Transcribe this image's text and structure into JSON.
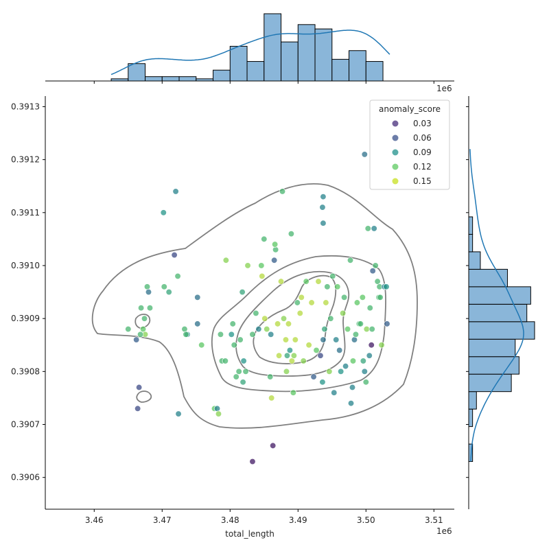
{
  "chart_data": {
    "type": "scatter",
    "subtype": "jointplot",
    "xlabel": "total_length",
    "ylabel": "",
    "x_offset_label": "1e6",
    "xlim": [
      3452800,
      3513000
    ],
    "ylim": [
      0.39054,
      0.39132
    ],
    "x_ticks": [
      3460000,
      3470000,
      3480000,
      3490000,
      3500000,
      3510000
    ],
    "x_tick_labels": [
      "3.46",
      "3.47",
      "3.48",
      "3.49",
      "3.50",
      "3.51"
    ],
    "y_ticks": [
      0.3906,
      0.3907,
      0.3908,
      0.3909,
      0.391,
      0.3911,
      0.3912,
      0.3913
    ],
    "y_tick_labels": [
      "0.3906",
      "0.3907",
      "0.3908",
      "0.3909",
      "0.3910",
      "0.3911",
      "0.3912",
      "0.3913"
    ],
    "grid": false,
    "legend": {
      "title": "anomaly_score",
      "placement": "top-right",
      "entries": [
        {
          "label": "0.03",
          "color": "#472d7b"
        },
        {
          "label": "0.06",
          "color": "#3b528b"
        },
        {
          "label": "0.09",
          "color": "#21918c"
        },
        {
          "label": "0.12",
          "color": "#5ec962"
        },
        {
          "label": "0.15",
          "color": "#c8e020"
        }
      ]
    },
    "colormap": "viridis",
    "points": [
      [
        3466200,
        0.39086,
        0.07
      ],
      [
        3466600,
        0.39077,
        0.06
      ],
      [
        3466400,
        0.39073,
        0.06
      ],
      [
        3467200,
        0.39088,
        0.13
      ],
      [
        3467400,
        0.3909,
        0.12
      ],
      [
        3466900,
        0.39092,
        0.12
      ],
      [
        3467800,
        0.39096,
        0.12
      ],
      [
        3468000,
        0.39095,
        0.08
      ],
      [
        3468200,
        0.39092,
        0.12
      ],
      [
        3467500,
        0.39087,
        0.14
      ],
      [
        3465000,
        0.39088,
        0.12
      ],
      [
        3466800,
        0.39087,
        0.12
      ],
      [
        3470200,
        0.3911,
        0.1
      ],
      [
        3470300,
        0.39096,
        0.12
      ],
      [
        3471000,
        0.39095,
        0.11
      ],
      [
        3472000,
        0.39114,
        0.09
      ],
      [
        3471800,
        0.39102,
        0.06
      ],
      [
        3472300,
        0.39098,
        0.12
      ],
      [
        3472400,
        0.39072,
        0.09
      ],
      [
        3473300,
        0.39088,
        0.12
      ],
      [
        3473700,
        0.39087,
        0.09
      ],
      [
        3473500,
        0.39087,
        0.12
      ],
      [
        3475200,
        0.39094,
        0.08
      ],
      [
        3475200,
        0.39089,
        0.08
      ],
      [
        3475800,
        0.39085,
        0.13
      ],
      [
        3477700,
        0.39073,
        0.13
      ],
      [
        3478100,
        0.39073,
        0.09
      ],
      [
        3478300,
        0.39072,
        0.14
      ],
      [
        3478600,
        0.39087,
        0.12
      ],
      [
        3478800,
        0.39082,
        0.12
      ],
      [
        3479300,
        0.39082,
        0.12
      ],
      [
        3479400,
        0.39101,
        0.14
      ],
      [
        3480200,
        0.39087,
        0.1
      ],
      [
        3480400,
        0.39089,
        0.12
      ],
      [
        3480600,
        0.39085,
        0.12
      ],
      [
        3480900,
        0.39079,
        0.12
      ],
      [
        3481300,
        0.3908,
        0.12
      ],
      [
        3481500,
        0.39086,
        0.12
      ],
      [
        3481800,
        0.39095,
        0.11
      ],
      [
        3482000,
        0.39082,
        0.1
      ],
      [
        3481900,
        0.39078,
        0.11
      ],
      [
        3482300,
        0.3908,
        0.12
      ],
      [
        3482600,
        0.391,
        0.14
      ],
      [
        3483300,
        0.39087,
        0.12
      ],
      [
        3483800,
        0.39091,
        0.12
      ],
      [
        3484200,
        0.39088,
        0.09
      ],
      [
        3484600,
        0.391,
        0.13
      ],
      [
        3484700,
        0.39098,
        0.15
      ],
      [
        3485100,
        0.3909,
        0.15
      ],
      [
        3485400,
        0.39088,
        0.14
      ],
      [
        3485900,
        0.39079,
        0.12
      ],
      [
        3486100,
        0.39075,
        0.15
      ],
      [
        3486000,
        0.39087,
        0.09
      ],
      [
        3486500,
        0.39101,
        0.07
      ],
      [
        3486300,
        0.39066,
        0.04
      ],
      [
        3483300,
        0.39063,
        0.04
      ],
      [
        3486700,
        0.39103,
        0.12
      ],
      [
        3487000,
        0.39089,
        0.15
      ],
      [
        3487200,
        0.39083,
        0.15
      ],
      [
        3487500,
        0.39097,
        0.15
      ],
      [
        3487900,
        0.3909,
        0.14
      ],
      [
        3488200,
        0.39086,
        0.15
      ],
      [
        3488300,
        0.3908,
        0.14
      ],
      [
        3488400,
        0.39083,
        0.11
      ],
      [
        3488600,
        0.39089,
        0.15
      ],
      [
        3488800,
        0.39084,
        0.1
      ],
      [
        3489100,
        0.39082,
        0.15
      ],
      [
        3489300,
        0.39076,
        0.13
      ],
      [
        3489400,
        0.39083,
        0.14
      ],
      [
        3489600,
        0.39086,
        0.15
      ],
      [
        3489900,
        0.39093,
        0.12
      ],
      [
        3490300,
        0.39091,
        0.15
      ],
      [
        3490500,
        0.39094,
        0.15
      ],
      [
        3490800,
        0.39082,
        0.14
      ],
      [
        3491200,
        0.39097,
        0.13
      ],
      [
        3491600,
        0.39085,
        0.15
      ],
      [
        3492000,
        0.39093,
        0.15
      ],
      [
        3492300,
        0.39079,
        0.07
      ],
      [
        3492700,
        0.39084,
        0.13
      ],
      [
        3493000,
        0.39097,
        0.15
      ],
      [
        3493300,
        0.39083,
        0.06
      ],
      [
        3493600,
        0.39078,
        0.1
      ],
      [
        3493700,
        0.39086,
        0.08
      ],
      [
        3493900,
        0.39088,
        0.11
      ],
      [
        3494100,
        0.39093,
        0.15
      ],
      [
        3494300,
        0.39096,
        0.12
      ],
      [
        3494600,
        0.3908,
        0.14
      ],
      [
        3494800,
        0.3909,
        0.12
      ],
      [
        3495100,
        0.39098,
        0.12
      ],
      [
        3495300,
        0.39076,
        0.09
      ],
      [
        3495600,
        0.39086,
        0.09
      ],
      [
        3495800,
        0.39096,
        0.13
      ],
      [
        3496100,
        0.39084,
        0.08
      ],
      [
        3496300,
        0.3908,
        0.1
      ],
      [
        3496600,
        0.39091,
        0.14
      ],
      [
        3496800,
        0.39094,
        0.12
      ],
      [
        3497000,
        0.39081,
        0.09
      ],
      [
        3497300,
        0.39088,
        0.13
      ],
      [
        3497700,
        0.39101,
        0.12
      ],
      [
        3497800,
        0.39074,
        0.09
      ],
      [
        3498000,
        0.39077,
        0.09
      ],
      [
        3498100,
        0.39082,
        0.13
      ],
      [
        3498300,
        0.39086,
        0.08
      ],
      [
        3498500,
        0.39087,
        0.12
      ],
      [
        3498700,
        0.39093,
        0.13
      ],
      [
        3499000,
        0.39089,
        0.12
      ],
      [
        3499200,
        0.39089,
        0.12
      ],
      [
        3499500,
        0.39094,
        0.13
      ],
      [
        3499600,
        0.39082,
        0.11
      ],
      [
        3499800,
        0.3908,
        0.09
      ],
      [
        3500000,
        0.39078,
        0.12
      ],
      [
        3500100,
        0.39088,
        0.14
      ],
      [
        3500300,
        0.39107,
        0.12
      ],
      [
        3500500,
        0.39083,
        0.09
      ],
      [
        3500600,
        0.39092,
        0.12
      ],
      [
        3500800,
        0.39085,
        0.04
      ],
      [
        3500900,
        0.39088,
        0.12
      ],
      [
        3501000,
        0.39099,
        0.07
      ],
      [
        3501200,
        0.39107,
        0.09
      ],
      [
        3501400,
        0.391,
        0.12
      ],
      [
        3501700,
        0.39097,
        0.12
      ],
      [
        3501900,
        0.39094,
        0.12
      ],
      [
        3502000,
        0.39096,
        0.12
      ],
      [
        3502100,
        0.39094,
        0.12
      ],
      [
        3502300,
        0.39085,
        0.14
      ],
      [
        3502700,
        0.39096,
        0.09
      ],
      [
        3503000,
        0.39096,
        0.1
      ],
      [
        3503100,
        0.39089,
        0.07
      ],
      [
        3499800,
        0.39121,
        0.08
      ],
      [
        3493700,
        0.39113,
        0.09
      ],
      [
        3493600,
        0.39111,
        0.09
      ],
      [
        3493700,
        0.39108,
        0.09
      ],
      [
        3487700,
        0.39114,
        0.12
      ],
      [
        3489000,
        0.39106,
        0.12
      ],
      [
        3486600,
        0.39104,
        0.13
      ],
      [
        3485000,
        0.39105,
        0.12
      ]
    ],
    "x_hist": {
      "bin_edges": [
        3462500,
        3465000,
        3467500,
        3470000,
        3472500,
        3475000,
        3477500,
        3480000,
        3482500,
        3485000,
        3487500,
        3490000,
        3492500,
        3495000,
        3497500,
        3500000,
        3502500,
        3505000
      ],
      "counts": [
        1,
        8,
        2,
        2,
        2,
        1,
        5,
        16,
        9,
        31,
        18,
        26,
        24,
        10,
        14,
        9,
        0
      ]
    },
    "y_hist": {
      "bin_edges": [
        0.39063,
        0.390663,
        0.390696,
        0.390729,
        0.390762,
        0.390795,
        0.390828,
        0.390861,
        0.390894,
        0.390927,
        0.39096,
        0.390993,
        0.391026,
        0.391059,
        0.391092,
        0.391125
      ],
      "counts": [
        1,
        0,
        1,
        2,
        11,
        13,
        12,
        17,
        15,
        16,
        10,
        3,
        1,
        1,
        0
      ]
    }
  }
}
